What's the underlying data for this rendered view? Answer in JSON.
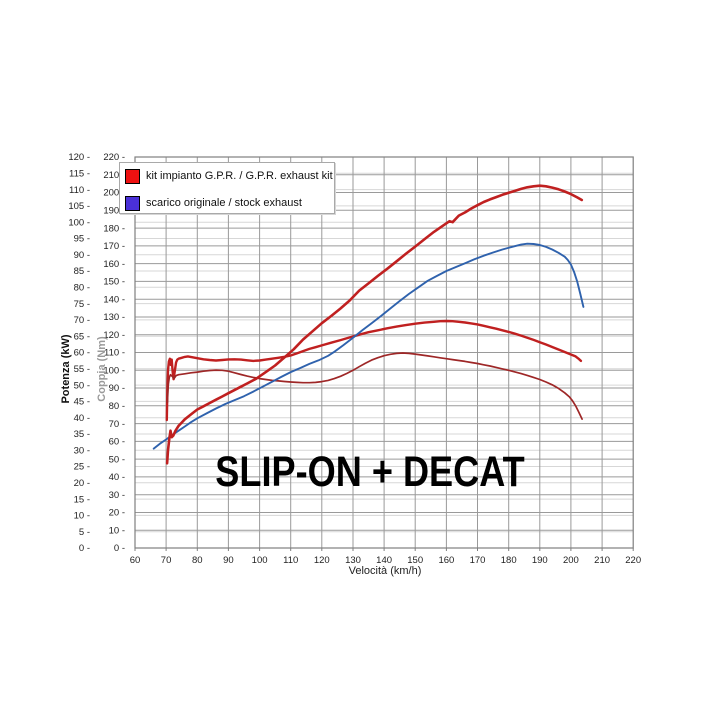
{
  "colors": {
    "grid_major": "#9a9a9a",
    "grid_minor": "#d7d7d7",
    "plot_border": "#7f7f7f",
    "tick_text": "#222222",
    "legend_red": "#ee1111",
    "legend_blue": "#4a30d8"
  },
  "chart_data": {
    "type": "line",
    "annotation": "SLIP-ON + DECAT",
    "grid": true,
    "legend_position": "top-left",
    "legend": [
      {
        "label": "kit impianto G.P.R. / G.P.R. exhaust kit",
        "swatch": "#ee1111"
      },
      {
        "label": "scarico originale / stock exhaust",
        "swatch": "#4a30d8"
      }
    ],
    "x_axis": {
      "label": "Velocità (km/h)",
      "min": 60,
      "max": 220,
      "tick_step": 10,
      "ticks": [
        60,
        70,
        80,
        90,
        100,
        110,
        120,
        130,
        140,
        150,
        160,
        170,
        180,
        190,
        200,
        210,
        220
      ]
    },
    "y_axis_power": {
      "label": "Potenza (kW)",
      "min": 0,
      "max": 120,
      "tick_step": 5,
      "ticks": [
        0,
        5,
        10,
        15,
        20,
        25,
        30,
        35,
        40,
        45,
        50,
        55,
        60,
        65,
        70,
        75,
        80,
        85,
        90,
        95,
        100,
        105,
        110,
        115,
        120
      ]
    },
    "y_axis_torque": {
      "label": "Coppia (Nm)",
      "min": 0,
      "max": 220,
      "tick_step": 10,
      "ticks": [
        0,
        10,
        20,
        30,
        40,
        50,
        60,
        70,
        80,
        90,
        100,
        110,
        120,
        130,
        140,
        150,
        160,
        170,
        180,
        190,
        200,
        210,
        220
      ]
    },
    "series": [
      {
        "name": "GPR exhaust kit – torque",
        "value_axis": "Nm",
        "color": "#c02020",
        "stroke_width": 2.4,
        "points": [
          [
            70.2,
            72
          ],
          [
            70.4,
            90
          ],
          [
            70.6,
            100
          ],
          [
            70.9,
            105
          ],
          [
            71.2,
            106.5
          ],
          [
            71.5,
            103
          ],
          [
            71.8,
            106
          ],
          [
            72.1,
            99
          ],
          [
            72.4,
            95
          ],
          [
            72.8,
            100
          ],
          [
            73.2,
            104.5
          ],
          [
            73.6,
            106
          ],
          [
            74,
            106.5
          ],
          [
            75,
            107
          ],
          [
            76,
            107.5
          ],
          [
            77,
            107.8
          ],
          [
            78.5,
            107.3
          ],
          [
            80,
            106.8
          ],
          [
            82,
            106.2
          ],
          [
            84,
            105.8
          ],
          [
            86,
            105.5
          ],
          [
            88,
            105.8
          ],
          [
            90,
            106.1
          ],
          [
            92,
            106.2
          ],
          [
            94,
            106
          ],
          [
            96,
            105.6
          ],
          [
            98,
            105.3
          ],
          [
            100,
            105.5
          ],
          [
            102,
            106
          ],
          [
            104,
            106.5
          ],
          [
            106,
            107
          ],
          [
            108,
            107.6
          ],
          [
            110,
            108.3
          ],
          [
            112,
            109.5
          ],
          [
            114,
            110.8
          ],
          [
            116,
            112
          ],
          [
            118,
            113
          ],
          [
            120,
            114
          ],
          [
            123,
            115.5
          ],
          [
            126,
            117
          ],
          [
            129,
            118.5
          ],
          [
            132,
            120
          ],
          [
            135,
            121.4
          ],
          [
            138,
            122.5
          ],
          [
            141,
            123.6
          ],
          [
            144,
            124.6
          ],
          [
            147,
            125.4
          ],
          [
            150,
            126.2
          ],
          [
            153,
            126.8
          ],
          [
            156,
            127.3
          ],
          [
            158,
            127.6
          ],
          [
            160,
            127.7
          ],
          [
            162,
            127.6
          ],
          [
            164,
            127.3
          ],
          [
            166,
            126.9
          ],
          [
            168,
            126.4
          ],
          [
            170,
            125.8
          ],
          [
            172,
            125
          ],
          [
            174,
            124.2
          ],
          [
            176,
            123.4
          ],
          [
            178,
            122.5
          ],
          [
            180,
            121.6
          ],
          [
            182,
            120.6
          ],
          [
            184,
            119.5
          ],
          [
            186,
            118.3
          ],
          [
            188,
            117.1
          ],
          [
            190,
            115.8
          ],
          [
            192,
            114.5
          ],
          [
            194,
            113.1
          ],
          [
            196,
            111.7
          ],
          [
            198,
            110.3
          ],
          [
            200,
            108.9
          ],
          [
            201.5,
            107.8
          ],
          [
            202.6,
            106.3
          ],
          [
            203.2,
            105.3
          ]
        ]
      },
      {
        "name": "stock exhaust – torque",
        "value_axis": "Nm",
        "color": "#9e2727",
        "stroke_width": 1.7,
        "points": [
          [
            70.4,
            82
          ],
          [
            70.7,
            92
          ],
          [
            71,
            96
          ],
          [
            71.4,
            97.5
          ],
          [
            72,
            96.5
          ],
          [
            72.6,
            95.5
          ],
          [
            73.2,
            97
          ],
          [
            74,
            97.5
          ],
          [
            76,
            98
          ],
          [
            78,
            98.6
          ],
          [
            80,
            99
          ],
          [
            82,
            99.5
          ],
          [
            84,
            99.9
          ],
          [
            86,
            100.1
          ],
          [
            88,
            100
          ],
          [
            90,
            99.5
          ],
          [
            92,
            98.6
          ],
          [
            94,
            97.6
          ],
          [
            96,
            96.7
          ],
          [
            98,
            96
          ],
          [
            100,
            95.3
          ],
          [
            102,
            94.8
          ],
          [
            104,
            94.3
          ],
          [
            106,
            94
          ],
          [
            108,
            93.7
          ],
          [
            110,
            93.4
          ],
          [
            112,
            93.2
          ],
          [
            114,
            93
          ],
          [
            116,
            93
          ],
          [
            118,
            93.2
          ],
          [
            120,
            93.6
          ],
          [
            122,
            94.3
          ],
          [
            124,
            95.3
          ],
          [
            126,
            96.6
          ],
          [
            128,
            98.2
          ],
          [
            130,
            100
          ],
          [
            132,
            102
          ],
          [
            134,
            104
          ],
          [
            136,
            105.7
          ],
          [
            138,
            107.1
          ],
          [
            140,
            108.2
          ],
          [
            142,
            109
          ],
          [
            144,
            109.5
          ],
          [
            146,
            109.7
          ],
          [
            148,
            109.5
          ],
          [
            150,
            109.1
          ],
          [
            152,
            108.6
          ],
          [
            154,
            108.1
          ],
          [
            156,
            107.6
          ],
          [
            158,
            107
          ],
          [
            160,
            106.5
          ],
          [
            162,
            106
          ],
          [
            164,
            105.5
          ],
          [
            166,
            105
          ],
          [
            168,
            104.4
          ],
          [
            170,
            103.8
          ],
          [
            172,
            103.1
          ],
          [
            174,
            102.4
          ],
          [
            176,
            101.6
          ],
          [
            178,
            100.8
          ],
          [
            180,
            100
          ],
          [
            182,
            99.1
          ],
          [
            184,
            98.1
          ],
          [
            186,
            97.1
          ],
          [
            188,
            96
          ],
          [
            190,
            94.8
          ],
          [
            192,
            93.4
          ],
          [
            194,
            91.8
          ],
          [
            196,
            89.8
          ],
          [
            198,
            87.3
          ],
          [
            199.5,
            85
          ],
          [
            200.5,
            82.8
          ],
          [
            201.5,
            80
          ],
          [
            202.5,
            76.5
          ],
          [
            203.6,
            72.5
          ]
        ]
      },
      {
        "name": "stock exhaust – power",
        "value_axis": "kW",
        "color": "#2f62ad",
        "stroke_width": 1.9,
        "points": [
          [
            66,
            30.5
          ],
          [
            68,
            32
          ],
          [
            70,
            33.3
          ],
          [
            72,
            34.7
          ],
          [
            74,
            36
          ],
          [
            76,
            37.3
          ],
          [
            78,
            38.6
          ],
          [
            80,
            39.8
          ],
          [
            83,
            41.3
          ],
          [
            86,
            42.8
          ],
          [
            89,
            44.2
          ],
          [
            92,
            45.4
          ],
          [
            95,
            46.6
          ],
          [
            98,
            48
          ],
          [
            101,
            49.5
          ],
          [
            104,
            51
          ],
          [
            107,
            52.5
          ],
          [
            110,
            54
          ],
          [
            113,
            55.2
          ],
          [
            116,
            56.5
          ],
          [
            119,
            57.6
          ],
          [
            122,
            59
          ],
          [
            124,
            60.2
          ],
          [
            127,
            62.3
          ],
          [
            130,
            64.5
          ],
          [
            133,
            66.8
          ],
          [
            136,
            69
          ],
          [
            139,
            71.2
          ],
          [
            142,
            73.5
          ],
          [
            145,
            75.8
          ],
          [
            148,
            78
          ],
          [
            151,
            80
          ],
          [
            154,
            82
          ],
          [
            157,
            83.5
          ],
          [
            160,
            85
          ],
          [
            163,
            86.2
          ],
          [
            166,
            87.4
          ],
          [
            169,
            88.6
          ],
          [
            172,
            89.7
          ],
          [
            175,
            90.7
          ],
          [
            178,
            91.6
          ],
          [
            181,
            92.4
          ],
          [
            184,
            93.1
          ],
          [
            186,
            93.4
          ],
          [
            188,
            93.3
          ],
          [
            190,
            93
          ],
          [
            192,
            92.4
          ],
          [
            194,
            91.6
          ],
          [
            196,
            90.6
          ],
          [
            198,
            89.4
          ],
          [
            199,
            88.4
          ],
          [
            200,
            87
          ],
          [
            201,
            84.8
          ],
          [
            202,
            81.8
          ],
          [
            203,
            78
          ],
          [
            204,
            74
          ]
        ]
      },
      {
        "name": "GPR exhaust kit – power",
        "value_axis": "kW",
        "color": "#c02020",
        "stroke_width": 2.6,
        "points": [
          [
            70.3,
            26
          ],
          [
            70.6,
            30
          ],
          [
            71,
            33.5
          ],
          [
            71.4,
            36
          ],
          [
            71.8,
            34
          ],
          [
            72.3,
            34.5
          ],
          [
            73,
            36
          ],
          [
            74,
            37.5
          ],
          [
            75,
            38.5
          ],
          [
            76,
            39.5
          ],
          [
            78,
            41
          ],
          [
            80,
            42.5
          ],
          [
            82,
            43.5
          ],
          [
            84,
            44.5
          ],
          [
            86,
            45.5
          ],
          [
            88,
            46.5
          ],
          [
            90,
            47.5
          ],
          [
            93,
            49
          ],
          [
            96,
            50.5
          ],
          [
            99,
            52
          ],
          [
            102,
            54
          ],
          [
            105,
            56
          ],
          [
            108,
            58.5
          ],
          [
            111,
            61
          ],
          [
            114,
            64
          ],
          [
            117,
            66.5
          ],
          [
            120,
            69
          ],
          [
            123,
            71.2
          ],
          [
            126,
            73.5
          ],
          [
            129,
            76
          ],
          [
            132,
            79
          ],
          [
            135,
            81.2
          ],
          [
            138,
            83.5
          ],
          [
            141,
            85.7
          ],
          [
            144,
            88
          ],
          [
            147,
            90.3
          ],
          [
            150,
            92.5
          ],
          [
            153,
            94.8
          ],
          [
            156,
            97
          ],
          [
            159,
            99
          ],
          [
            161,
            100.3
          ],
          [
            162,
            100
          ],
          [
            164,
            102
          ],
          [
            166,
            103
          ],
          [
            168,
            104.2
          ],
          [
            170,
            105.2
          ],
          [
            172,
            106.2
          ],
          [
            174,
            107
          ],
          [
            176,
            107.7
          ],
          [
            178,
            108.4
          ],
          [
            180,
            109
          ],
          [
            182,
            109.6
          ],
          [
            184,
            110.2
          ],
          [
            186,
            110.7
          ],
          [
            188,
            111
          ],
          [
            190,
            111.2
          ],
          [
            192,
            111
          ],
          [
            194,
            110.6
          ],
          [
            196,
            110.1
          ],
          [
            198,
            109.4
          ],
          [
            200,
            108.6
          ],
          [
            202,
            107.6
          ],
          [
            203.5,
            106.8
          ]
        ]
      }
    ]
  }
}
